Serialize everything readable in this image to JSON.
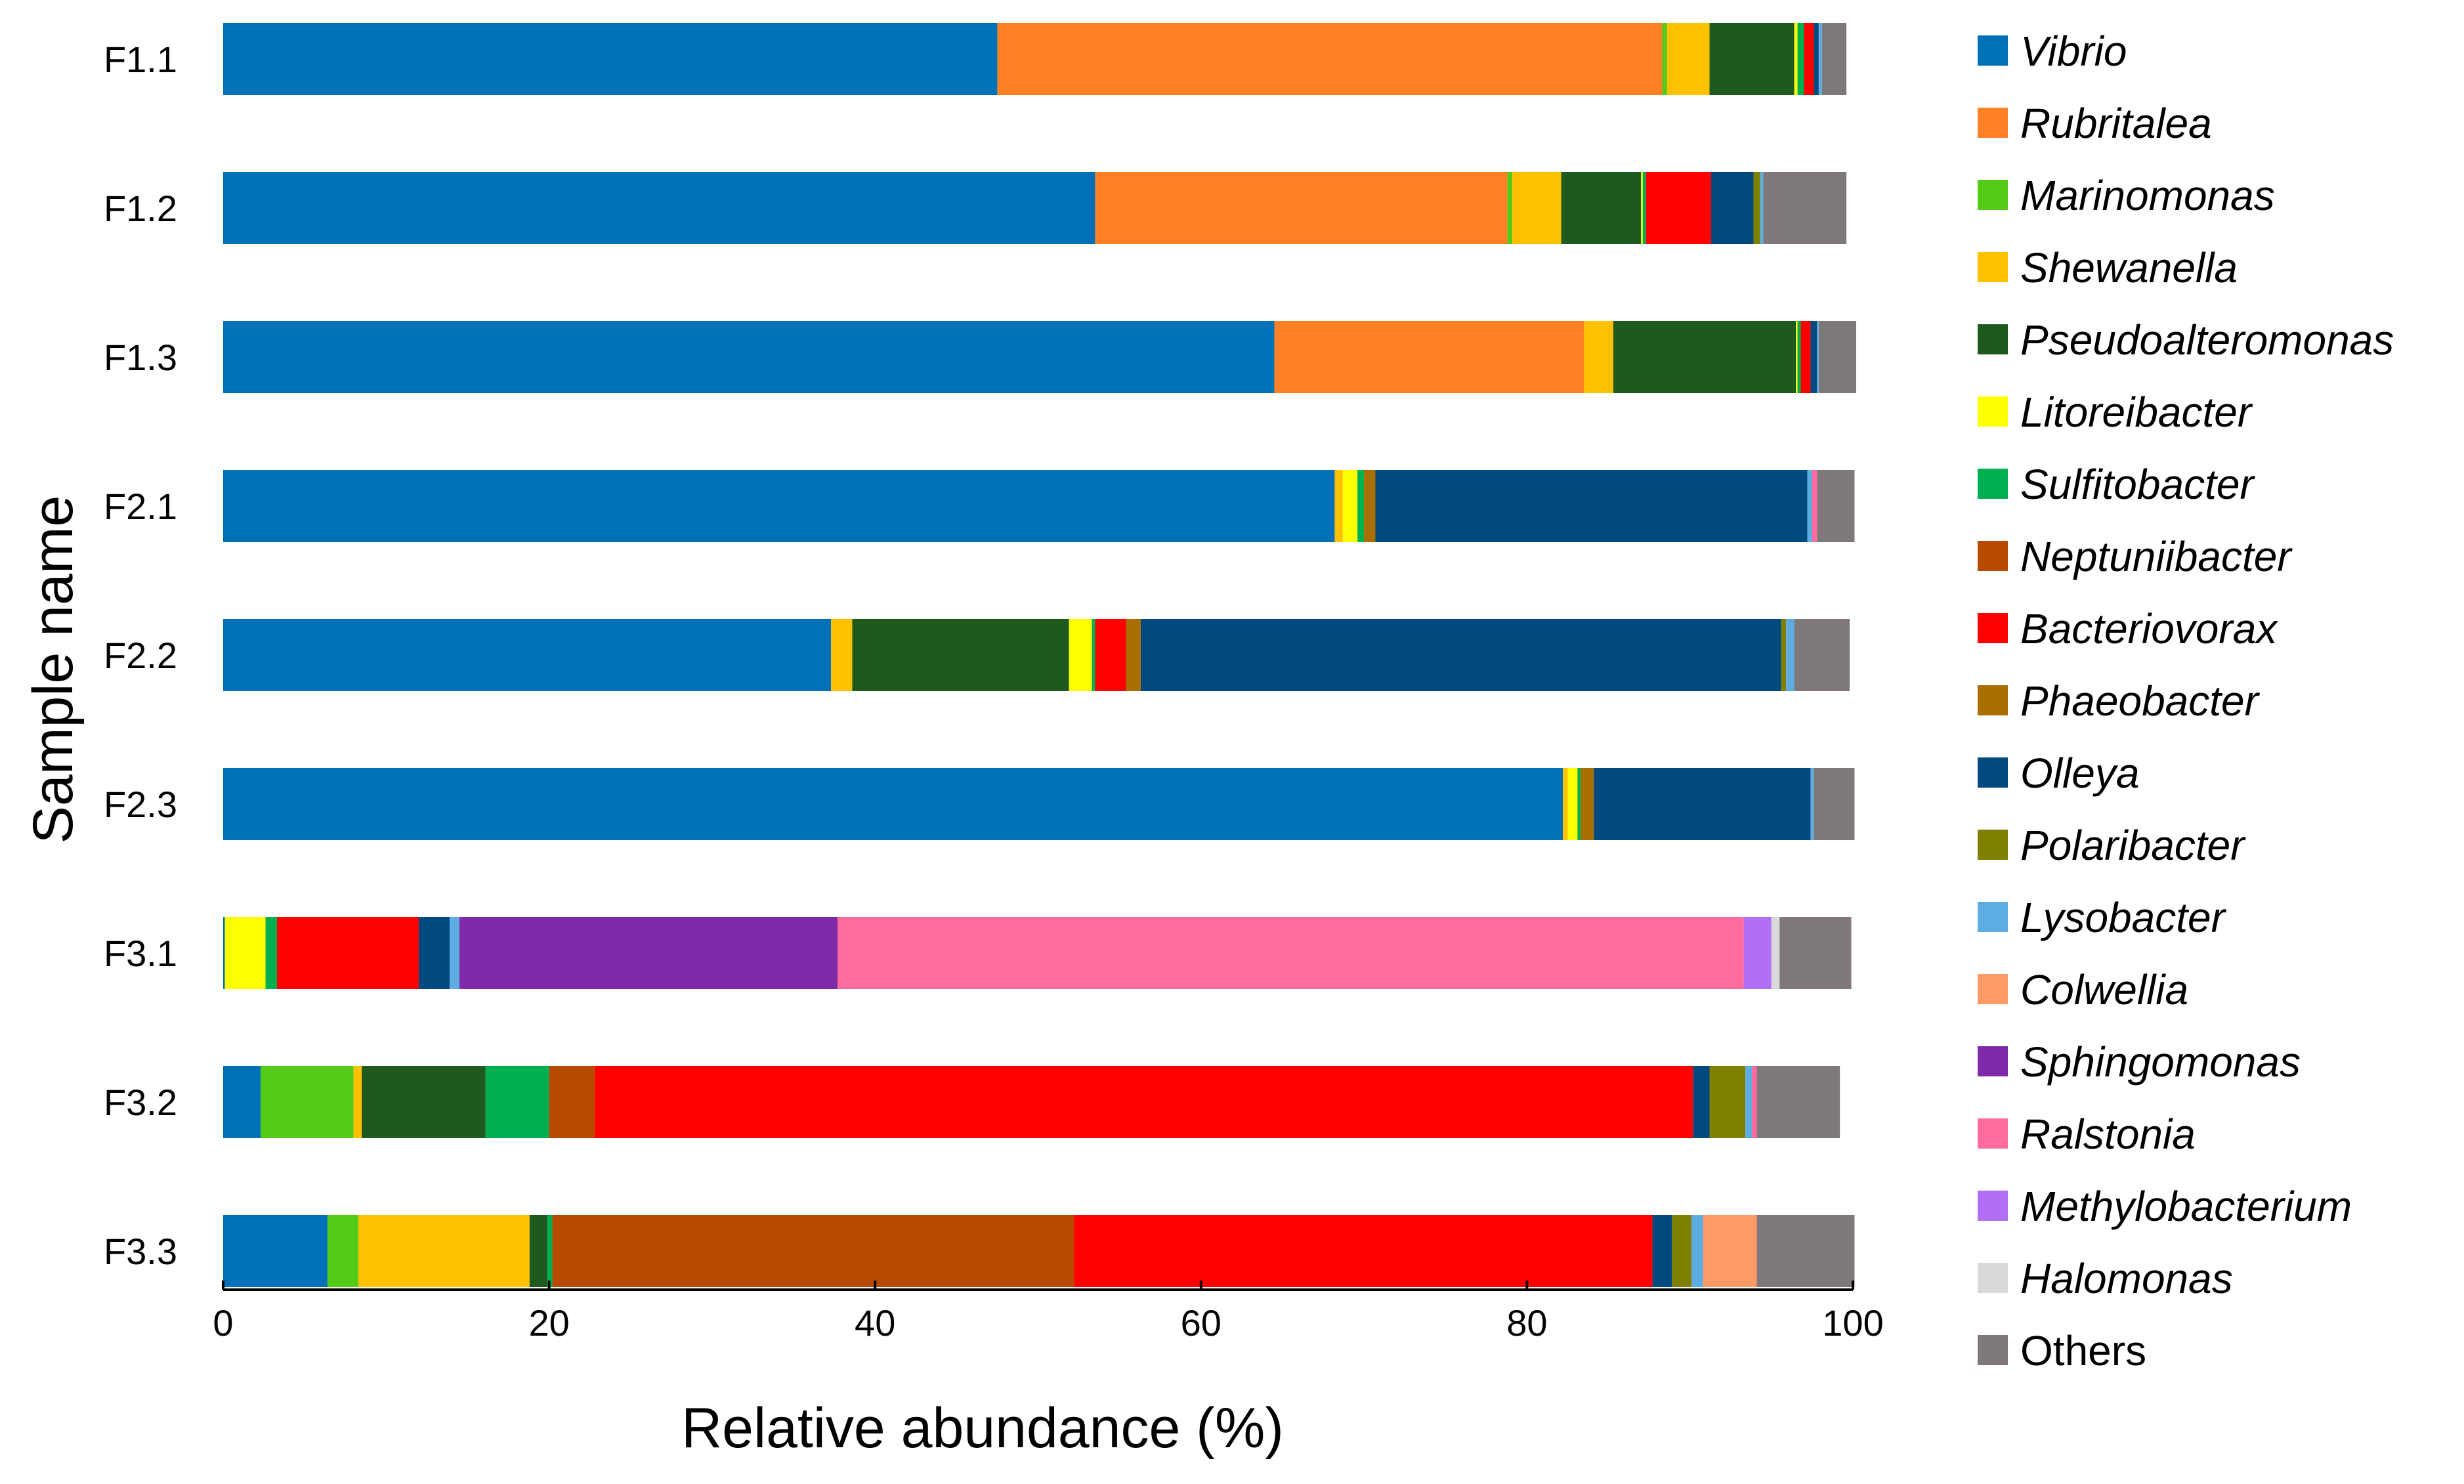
{
  "chart_data": {
    "type": "bar",
    "orientation": "horizontal",
    "stacked": true,
    "xlabel": "Relative abundance (%)",
    "ylabel": "Sample name",
    "xlim": [
      0,
      100
    ],
    "xticks": [
      "0",
      "20",
      "40",
      "60",
      "80",
      "100"
    ],
    "grid": false,
    "legend_position": "right",
    "categories": [
      "F1.1",
      "F1.2",
      "F1.3",
      "F2.1",
      "F2.2",
      "F2.3",
      "F3.1",
      "F3.2",
      "F3.3"
    ],
    "series": [
      {
        "name": "Vibrio",
        "italic": true,
        "color": "#0070B8",
        "values": [
          47.5,
          53.5,
          64.5,
          68.2,
          37.3,
          82.2,
          0.1,
          2.3,
          6.4
        ]
      },
      {
        "name": "Rubritalea",
        "italic": true,
        "color": "#FF8025",
        "values": [
          40.8,
          25.3,
          19.0,
          0.0,
          0.0,
          0.0,
          0.0,
          0.0,
          0.0
        ]
      },
      {
        "name": "Marinomonas",
        "italic": true,
        "color": "#52CC17",
        "values": [
          0.3,
          0.3,
          0.0,
          0.0,
          0.0,
          0.0,
          0.0,
          5.7,
          1.9
        ]
      },
      {
        "name": "Shewanella",
        "italic": true,
        "color": "#FFC000",
        "values": [
          2.6,
          3.0,
          1.8,
          0.5,
          1.3,
          0.3,
          0.0,
          0.5,
          10.5
        ]
      },
      {
        "name": "Pseudoalteromonas",
        "italic": true,
        "color": "#1E5A1E",
        "values": [
          5.2,
          4.9,
          11.2,
          0.0,
          13.3,
          0.0,
          0.0,
          7.6,
          1.1
        ]
      },
      {
        "name": "Litoreibacter",
        "italic": true,
        "color": "#FFFF00",
        "values": [
          0.2,
          0.1,
          0.1,
          0.9,
          1.4,
          0.6,
          2.5,
          0.0,
          0.0
        ]
      },
      {
        "name": "Sulfitobacter",
        "italic": true,
        "color": "#00B050",
        "values": [
          0.4,
          0.2,
          0.2,
          0.4,
          0.2,
          0.2,
          0.7,
          3.9,
          0.3
        ]
      },
      {
        "name": "Neptuniibacter",
        "italic": true,
        "color": "#B84A00",
        "values": [
          0.0,
          0.0,
          0.0,
          0.0,
          0.0,
          0.0,
          0.0,
          2.8,
          32.0
        ]
      },
      {
        "name": "Bacteriovorax",
        "italic": true,
        "color": "#FF0000",
        "values": [
          0.6,
          4.0,
          0.6,
          0.0,
          1.9,
          0.0,
          8.7,
          67.4,
          35.5
        ]
      },
      {
        "name": "Phaeobacter",
        "italic": true,
        "color": "#A86E00",
        "values": [
          0.0,
          0.0,
          0.0,
          0.7,
          0.9,
          0.8,
          0.0,
          0.0,
          0.0
        ]
      },
      {
        "name": "Olleya",
        "italic": true,
        "color": "#004A80",
        "values": [
          0.3,
          2.6,
          0.4,
          26.5,
          39.3,
          13.3,
          1.9,
          1.0,
          1.2
        ]
      },
      {
        "name": "Polaribacter",
        "italic": true,
        "color": "#7F7F00",
        "values": [
          0.0,
          0.4,
          0.0,
          0.0,
          0.3,
          0.0,
          0.0,
          2.2,
          1.2
        ]
      },
      {
        "name": "Lysobacter",
        "italic": true,
        "color": "#5DADE2",
        "values": [
          0.2,
          0.2,
          0.1,
          0.3,
          0.5,
          0.2,
          0.6,
          0.4,
          0.7
        ]
      },
      {
        "name": "Colwellia",
        "italic": true,
        "color": "#FF9966",
        "values": [
          0.0,
          0.0,
          0.0,
          0.0,
          0.0,
          0.0,
          0.0,
          0.0,
          3.3
        ]
      },
      {
        "name": "Sphingomonas",
        "italic": true,
        "color": "#7F2AA8",
        "values": [
          0.0,
          0.0,
          0.0,
          0.0,
          0.0,
          0.0,
          23.2,
          0.0,
          0.0
        ]
      },
      {
        "name": "Ralstonia",
        "italic": true,
        "color": "#FF6B9E",
        "values": [
          0.0,
          0.0,
          0.0,
          0.3,
          0.0,
          0.0,
          55.6,
          0.3,
          0.0
        ]
      },
      {
        "name": "Methylobacterium",
        "italic": true,
        "color": "#B16FF5",
        "values": [
          0.0,
          0.0,
          0.0,
          0.0,
          0.0,
          0.0,
          1.7,
          0.0,
          0.0
        ]
      },
      {
        "name": "Halomonas",
        "italic": true,
        "color": "#D9D9D9",
        "values": [
          0.0,
          0.0,
          0.0,
          0.0,
          0.0,
          0.0,
          0.5,
          0.0,
          0.0
        ]
      },
      {
        "name": "Others",
        "italic": false,
        "color": "#7F7879",
        "values": [
          1.5,
          5.1,
          2.3,
          2.3,
          3.4,
          2.5,
          4.4,
          5.1,
          6.0
        ]
      }
    ]
  }
}
